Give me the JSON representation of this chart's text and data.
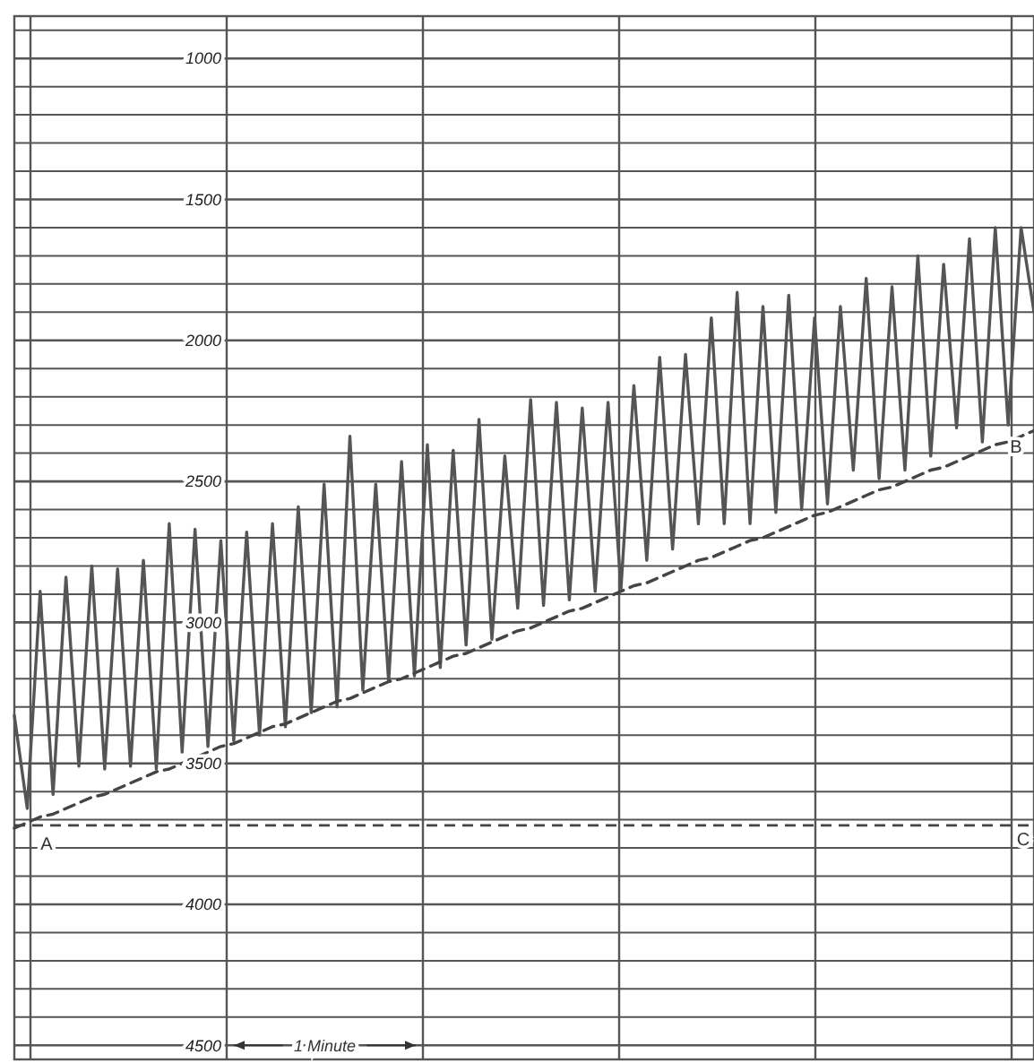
{
  "chart_data": {
    "type": "line",
    "ylim": [
      4550,
      850
    ],
    "categories": [
      null,
      null,
      null,
      null,
      null,
      null,
      null,
      null,
      null,
      null,
      null,
      null,
      null,
      null,
      null,
      null,
      null,
      null,
      null,
      null,
      null,
      null,
      null,
      null,
      null,
      null,
      null,
      null,
      null,
      null,
      null,
      null,
      null,
      null,
      null,
      null,
      null,
      null,
      null,
      null,
      null,
      null,
      null,
      null,
      null,
      null,
      null,
      null,
      null,
      null,
      null,
      null,
      null,
      null,
      null,
      null,
      null,
      null,
      null,
      null,
      null,
      null,
      null,
      null,
      null,
      null,
      null,
      null,
      null,
      null,
      null,
      null,
      null,
      null,
      null,
      null,
      null,
      null,
      null,
      null
    ],
    "yticks": [
      {
        "value": 900,
        "label": null
      },
      1000,
      {
        "value": 1100,
        "label": null
      },
      {
        "value": 1200,
        "label": null
      },
      {
        "value": 1300,
        "label": null
      },
      {
        "value": 1400,
        "label": null
      },
      1500,
      {
        "value": 1600,
        "label": null
      },
      {
        "value": 1700,
        "label": null
      },
      {
        "value": 1800,
        "label": null
      },
      {
        "value": 1900,
        "label": null
      },
      2000,
      {
        "value": 2100,
        "label": null
      },
      {
        "value": 2200,
        "label": null
      },
      {
        "value": 2300,
        "label": null
      },
      {
        "value": 2400,
        "label": null
      },
      2500,
      {
        "value": 2600,
        "label": null
      },
      {
        "value": 2700,
        "label": null
      },
      {
        "value": 2800,
        "label": null
      },
      {
        "value": 2900,
        "label": null
      },
      3000,
      {
        "value": 3100,
        "label": null
      },
      {
        "value": 3200,
        "label": null
      },
      {
        "value": 3300,
        "label": null
      },
      {
        "value": 3400,
        "label": null
      },
      3500,
      {
        "value": 3600,
        "label": null
      },
      {
        "value": 3700,
        "label": null
      },
      {
        "value": 3800,
        "label": null
      },
      {
        "value": 3900,
        "label": null
      },
      4000,
      {
        "value": 4100,
        "label": null
      },
      {
        "value": 4200,
        "label": null
      },
      {
        "value": 4300,
        "label": null
      },
      {
        "value": 4400,
        "label": null
      },
      4500
    ],
    "grid": true,
    "tick_labels": "y",
    "series": [
      {
        "color": "#555555",
        "line_style": "solid",
        "values": [
          3330,
          3660,
          2890,
          3610,
          2840,
          3510,
          2800,
          3520,
          2810,
          3510,
          2780,
          3520,
          2650,
          3460,
          2670,
          3440,
          2710,
          3420,
          2680,
          3400,
          2650,
          3370,
          2590,
          3320,
          2510,
          3300,
          2340,
          3240,
          2510,
          3210,
          2430,
          3190,
          2370,
          3160,
          2390,
          3080,
          2280,
          3060,
          2410,
          2950,
          2210,
          2940,
          2220,
          2920,
          2240,
          2890,
          2220,
          2880,
          2160,
          2780,
          2060,
          2740,
          2050,
          2650,
          1920,
          2650,
          1830,
          2650,
          1880,
          2610,
          1840,
          2600,
          1920,
          2580,
          1880,
          2460,
          1780,
          2490,
          1810,
          2460,
          1700,
          2410,
          1730,
          2310,
          1640,
          2360,
          1600,
          2300,
          1600,
          1900
        ]
      },
      {
        "color": "#444444",
        "line_style": "dashed",
        "values": [
          3730,
          3710,
          3690,
          3680,
          3660,
          3640,
          3620,
          3610,
          3590,
          3570,
          3550,
          3530,
          3520,
          3500,
          3480,
          3460,
          3440,
          3430,
          3410,
          3390,
          3370,
          3360,
          3340,
          3320,
          3300,
          3280,
          3270,
          3250,
          3230,
          3210,
          3200,
          3180,
          3160,
          3140,
          3120,
          3110,
          3090,
          3070,
          3050,
          3030,
          3020,
          3000,
          2980,
          2960,
          2950,
          2930,
          2910,
          2890,
          2870,
          2860,
          2840,
          2820,
          2800,
          2780,
          2770,
          2750,
          2730,
          2710,
          2700,
          2680,
          2660,
          2640,
          2620,
          2610,
          2590,
          2570,
          2550,
          2530,
          2520,
          2500,
          2480,
          2460,
          2450,
          2430,
          2410,
          2390,
          2370,
          2360,
          2340,
          2320
        ]
      }
    ],
    "ref_lines": [
      {
        "axis": "y",
        "value": 3720,
        "label": "C",
        "color": "#444444",
        "line_style": "dashed"
      }
    ],
    "annotations": [
      {
        "text": "A",
        "y": 3730
      },
      {
        "text": "B",
        "y": 2320
      },
      "1 Minute"
    ]
  }
}
